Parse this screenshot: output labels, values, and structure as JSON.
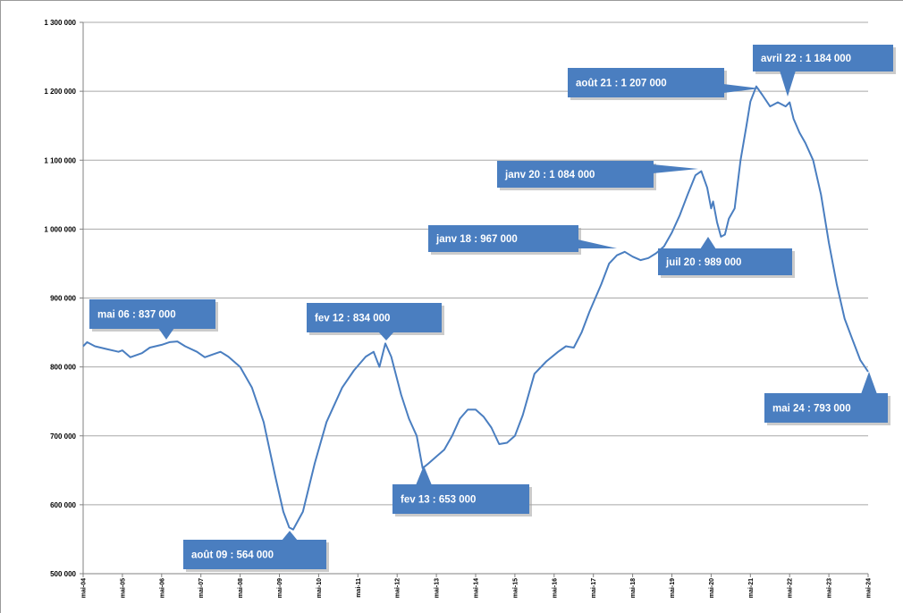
{
  "chart_data": {
    "type": "line",
    "title": "",
    "xlabel": "",
    "ylabel": "",
    "ylim": [
      500000,
      1300000
    ],
    "y_ticks": [
      500000,
      600000,
      700000,
      800000,
      900000,
      1000000,
      1100000,
      1200000,
      1300000
    ],
    "y_tick_labels": [
      "500 000",
      "600 000",
      "700 000",
      "800 000",
      "900 000",
      "1 000 000",
      "1 100 000",
      "1 200 000",
      "1 300 000"
    ],
    "x_ticks": [
      2004,
      2005,
      2006,
      2007,
      2008,
      2009,
      2010,
      2011,
      2012,
      2013,
      2014,
      2015,
      2016,
      2017,
      2018,
      2019,
      2020,
      2021,
      2022,
      2023,
      2024
    ],
    "x_tick_labels": [
      "mai-04",
      "mai-05",
      "mai-06",
      "mai-07",
      "mai-08",
      "mai-09",
      "mai-10",
      "mai-11",
      "mai-12",
      "mai-13",
      "mai-14",
      "mai-15",
      "mai-16",
      "mai-17",
      "mai-18",
      "mai-19",
      "mai-20",
      "mai-21",
      "mai-22",
      "mai-23",
      "mai-24"
    ],
    "xlim": [
      2004,
      2024
    ],
    "grid": "horizontal",
    "line_color": "#4a7ec0",
    "callout_color": "#4a7ec0",
    "series": [
      {
        "x": [
          2004.0,
          2004.1,
          2004.3,
          2004.6,
          2004.9,
          2005.0,
          2005.2,
          2005.5,
          2005.7,
          2006.0,
          2006.2,
          2006.4,
          2006.6,
          2006.9,
          2007.1,
          2007.3,
          2007.5,
          2007.7,
          2008.0,
          2008.3,
          2008.6,
          2008.9,
          2009.1,
          2009.25,
          2009.35,
          2009.6,
          2009.9,
          2010.2,
          2010.6,
          2010.9,
          2011.2,
          2011.4,
          2011.55,
          2011.7,
          2011.85,
          2012.1,
          2012.3,
          2012.5,
          2012.65,
          2012.8,
          2013.0,
          2013.2,
          2013.4,
          2013.6,
          2013.8,
          2014.0,
          2014.2,
          2014.4,
          2014.6,
          2014.8,
          2015.0,
          2015.2,
          2015.5,
          2015.8,
          2016.1,
          2016.3,
          2016.5,
          2016.7,
          2016.9,
          2017.2,
          2017.4,
          2017.6,
          2017.8,
          2018.0,
          2018.2,
          2018.4,
          2018.6,
          2018.8,
          2019.0,
          2019.2,
          2019.4,
          2019.6,
          2019.75,
          2019.9,
          2020.0,
          2020.05,
          2020.15,
          2020.25,
          2020.35,
          2020.45,
          2020.6,
          2020.75,
          2020.9,
          2021.0,
          2021.15,
          2021.3,
          2021.5,
          2021.7,
          2021.9,
          2022.0,
          2022.1,
          2022.25,
          2022.4,
          2022.6,
          2022.8,
          2023.0,
          2023.2,
          2023.4,
          2023.6,
          2023.8,
          2024.0
        ],
        "y": [
          830000,
          836000,
          830000,
          826000,
          822000,
          824000,
          814000,
          820000,
          828000,
          832000,
          836000,
          837000,
          830000,
          822000,
          814000,
          818000,
          822000,
          815000,
          800000,
          770000,
          720000,
          640000,
          590000,
          567000,
          564000,
          590000,
          660000,
          720000,
          770000,
          795000,
          815000,
          822000,
          800000,
          834000,
          815000,
          760000,
          725000,
          700000,
          653000,
          660000,
          670000,
          680000,
          700000,
          725000,
          738000,
          738000,
          728000,
          712000,
          688000,
          690000,
          700000,
          730000,
          790000,
          808000,
          822000,
          830000,
          828000,
          850000,
          880000,
          920000,
          950000,
          962000,
          967000,
          960000,
          955000,
          958000,
          965000,
          975000,
          995000,
          1020000,
          1050000,
          1078000,
          1084000,
          1060000,
          1030000,
          1040000,
          1010000,
          989000,
          992000,
          1015000,
          1030000,
          1100000,
          1150000,
          1185000,
          1207000,
          1195000,
          1178000,
          1184000,
          1178000,
          1184000,
          1160000,
          1140000,
          1125000,
          1100000,
          1050000,
          980000,
          920000,
          870000,
          840000,
          810000,
          793000
        ]
      }
    ],
    "annotations": [
      {
        "label": "mai 06 : 837 000",
        "x": 2006.4,
        "y": 837000
      },
      {
        "label": "août 09 : 564 000",
        "x": 2009.35,
        "y": 564000
      },
      {
        "label": "fev 12 : 834 000",
        "x": 2011.7,
        "y": 834000
      },
      {
        "label": "fev 13 : 653 000",
        "x": 2012.65,
        "y": 653000
      },
      {
        "label": "janv  18 : 967 000",
        "x": 2017.8,
        "y": 967000
      },
      {
        "label": "janv 20 : 1 084 000",
        "x": 2019.75,
        "y": 1084000
      },
      {
        "label": "juil 20 : 989 000",
        "x": 2020.25,
        "y": 989000
      },
      {
        "label": "août 21 : 1 207 000",
        "x": 2021.3,
        "y": 1207000
      },
      {
        "label": "avril 22 : 1 184 000",
        "x": 2021.9,
        "y": 1184000
      },
      {
        "label": "mai 24 : 793 000",
        "x": 2024.0,
        "y": 793000
      }
    ]
  }
}
